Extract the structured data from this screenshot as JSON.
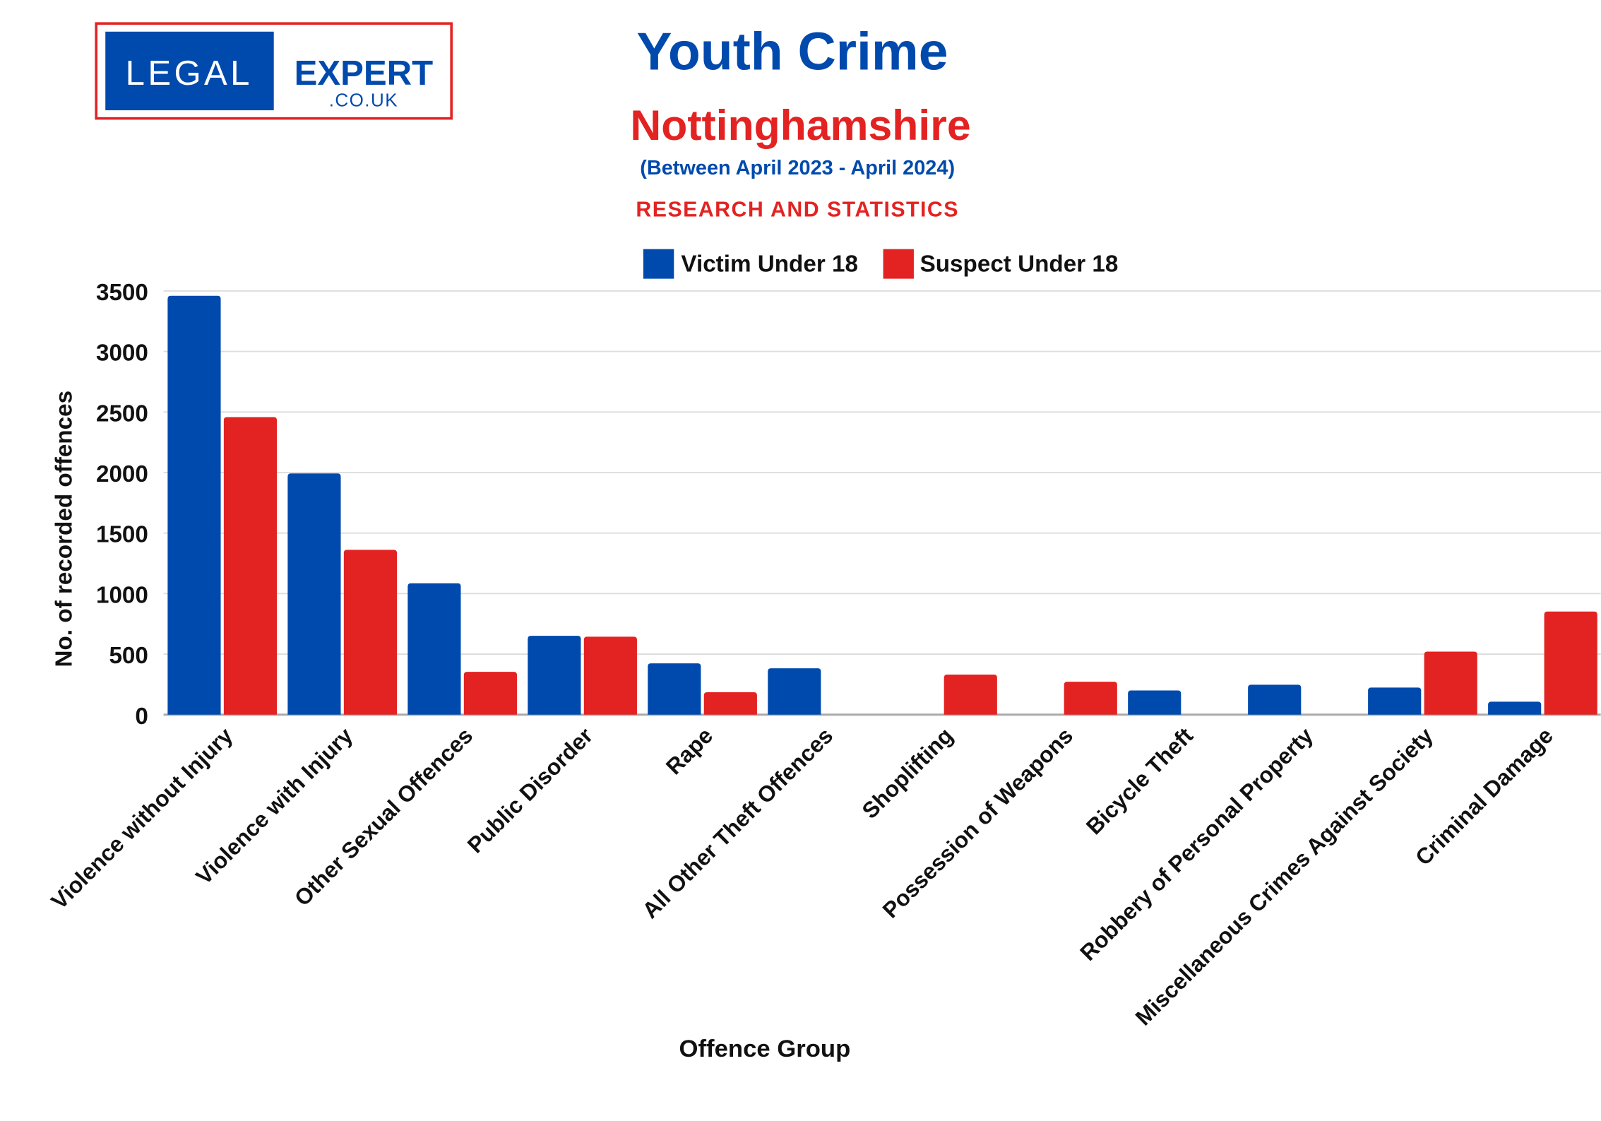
{
  "logo": {
    "left": "LEGAL",
    "right": "EXPERT",
    "sub": ".CO.UK"
  },
  "header": {
    "title": "Youth Crime",
    "region": "Nottinghamshire",
    "period": "(Between April 2023 - April 2024)",
    "tagline": "RESEARCH AND STATISTICS"
  },
  "colors": {
    "victim": "#004aad",
    "suspect": "#e32322",
    "title": "#004aad",
    "region": "#e32322"
  },
  "chart_data": {
    "type": "bar",
    "title": "Youth Crime",
    "xlabel": "Offence Group",
    "ylabel": "No. of recorded offences",
    "ylim": [
      0,
      3500
    ],
    "yticks": [
      "0",
      "500",
      "1000",
      "1500",
      "2000",
      "2500",
      "3000",
      "3500"
    ],
    "grid": true,
    "legend": "top-center",
    "categories": [
      "Violence without Injury",
      "Violence with Injury",
      "Other Sexual Offences",
      "Public Disorder",
      "Rape",
      "All Other Theft Offences",
      "Shoplifting",
      "Possession of Weapons",
      "Bicycle Theft",
      "Robbery of Personal Property",
      "Miscellaneous Crimes Against Society",
      "Criminal Damage"
    ],
    "series": [
      {
        "name": "Victim Under 18",
        "values": [
          3460,
          1993,
          1085,
          651,
          424,
          383,
          0,
          0,
          200,
          247,
          224,
          107
        ]
      },
      {
        "name": "Suspect Under 18",
        "values": [
          2458,
          1362,
          354,
          644,
          185,
          0,
          331,
          272,
          0,
          0,
          521,
          852
        ]
      }
    ]
  }
}
